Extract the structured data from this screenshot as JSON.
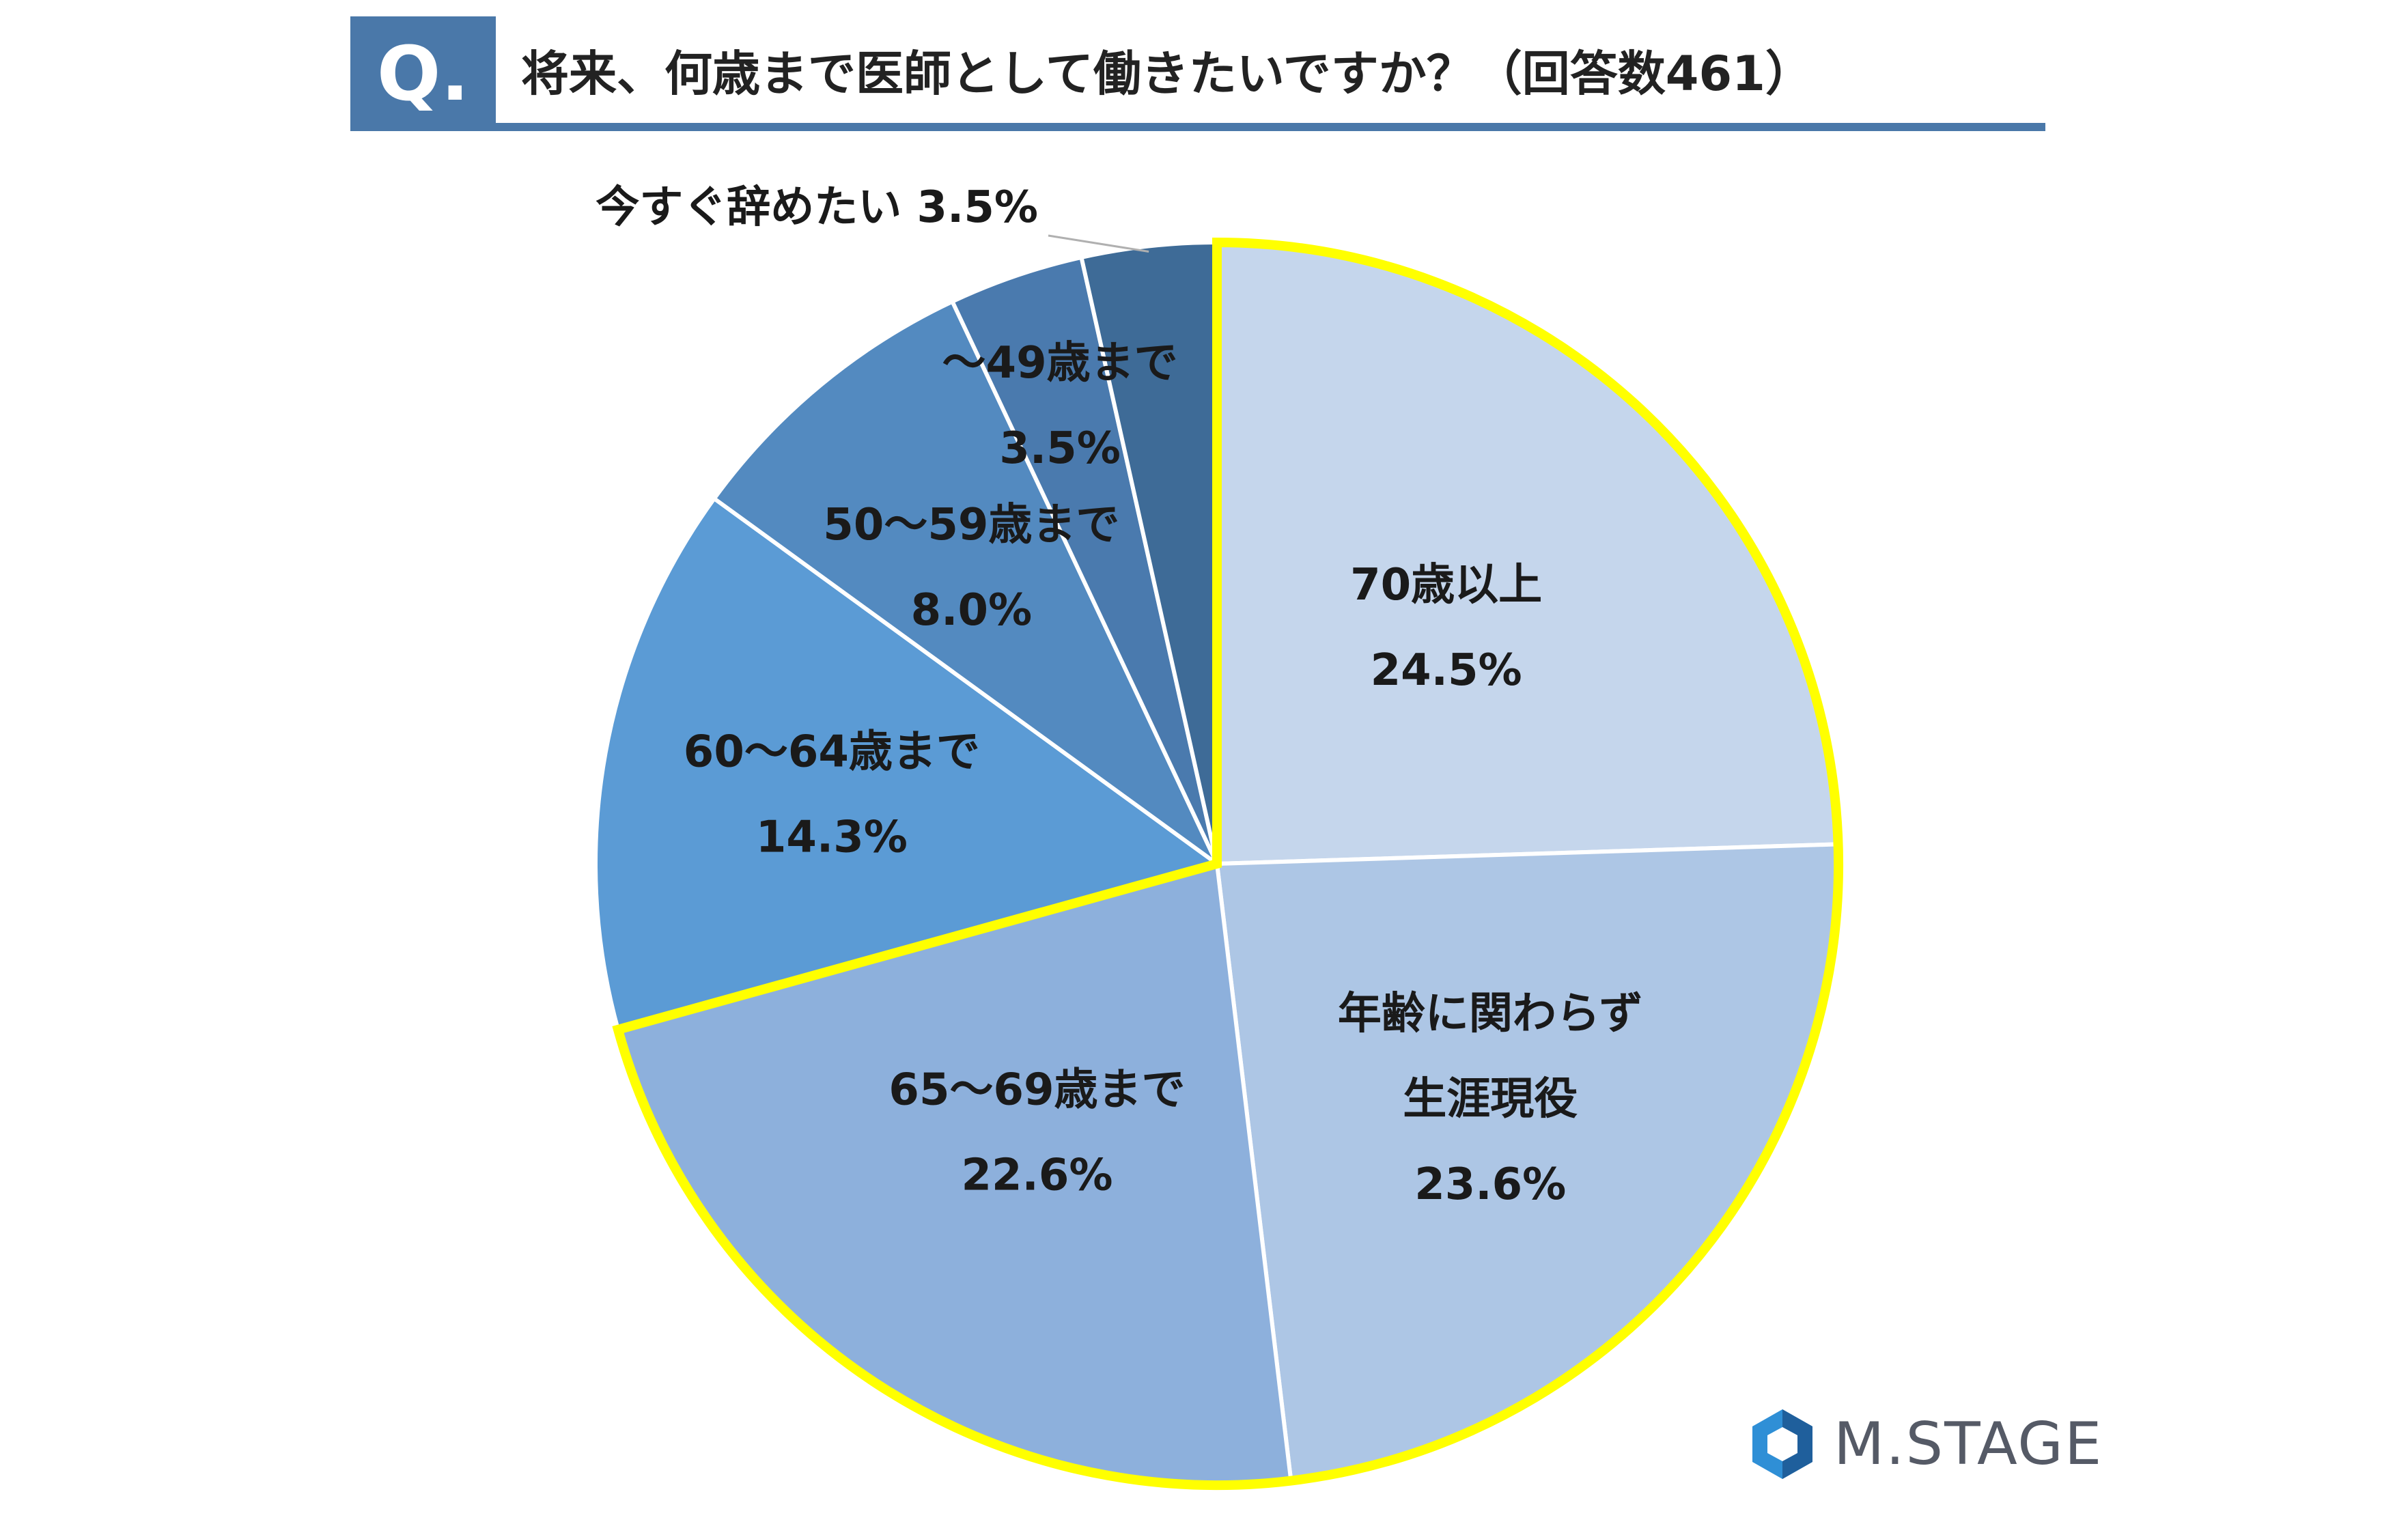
{
  "header": {
    "q_label": "Q.",
    "title": "将来、何歳まで医師として働きたいですか？（回答数461）"
  },
  "chart_data": {
    "type": "pie",
    "title": "将来、何歳まで医師として働きたいですか？（回答数461）",
    "start": "12 o'clock, clockwise",
    "slices": [
      {
        "label_lines": [
          "70歳以上"
        ],
        "value_text": "24.5%",
        "value": 24.5,
        "color": "#c5d6ec",
        "highlighted": true
      },
      {
        "label_lines": [
          "年齢に関わらず",
          "生涯現役"
        ],
        "value_text": "23.6%",
        "value": 23.6,
        "color": "#adc6e5",
        "highlighted": true
      },
      {
        "label_lines": [
          "65〜69歳まで"
        ],
        "value_text": "22.6%",
        "value": 22.6,
        "color": "#8db0dc",
        "highlighted": true
      },
      {
        "label_lines": [
          "60〜64歳まで"
        ],
        "value_text": "14.3%",
        "value": 14.3,
        "color": "#5b9bd5",
        "highlighted": false
      },
      {
        "label_lines": [
          "50〜59歳まで"
        ],
        "value_text": "8.0%",
        "value": 8.0,
        "color": "#538ac0",
        "highlighted": false
      },
      {
        "label_lines": [
          "〜49歳まで"
        ],
        "value_text": "3.5%",
        "value": 3.5,
        "color": "#4a7aae",
        "highlighted": false
      },
      {
        "label_lines": [
          "今すぐ辞めたい"
        ],
        "value_text": "3.5%",
        "value": 3.5,
        "color": "#3e6b97",
        "highlighted": false,
        "external_label": true
      }
    ],
    "highlight_color": "#ffff00"
  },
  "logo": {
    "text": "M.STAGE"
  }
}
